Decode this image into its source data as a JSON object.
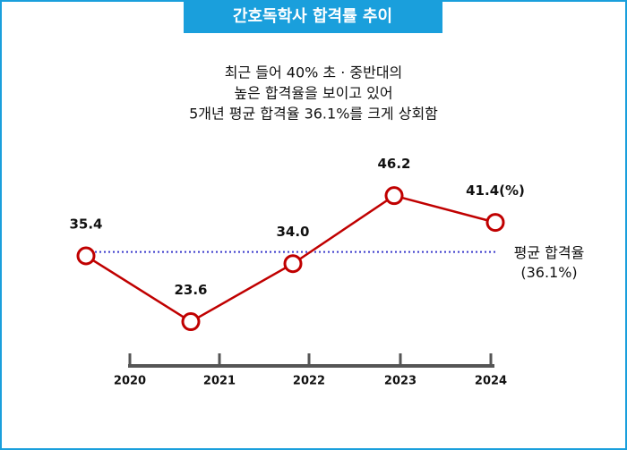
{
  "chart_data": {
    "type": "line",
    "title": "간호독학사 합격률 추이",
    "subtitle": [
      "최근 들어 40% 초 · 중반대의",
      "높은 합격율을 보이고 있어",
      "5개년 평균 합격율 36.1%를 크게 상회함"
    ],
    "categories": [
      "2020",
      "2021",
      "2022",
      "2023",
      "2024"
    ],
    "values": [
      35.4,
      23.6,
      34,
      46.2,
      41.4
    ],
    "value_labels": [
      "35.4",
      "23.6",
      "34.0",
      "46.2",
      "41.4(%)"
    ],
    "color": "#c00000",
    "ylim": [
      20,
      50
    ],
    "average": {
      "value": 36.1,
      "label": "평균 합격율",
      "value_label": "(36.1%)",
      "color": "#3a3acc"
    }
  }
}
